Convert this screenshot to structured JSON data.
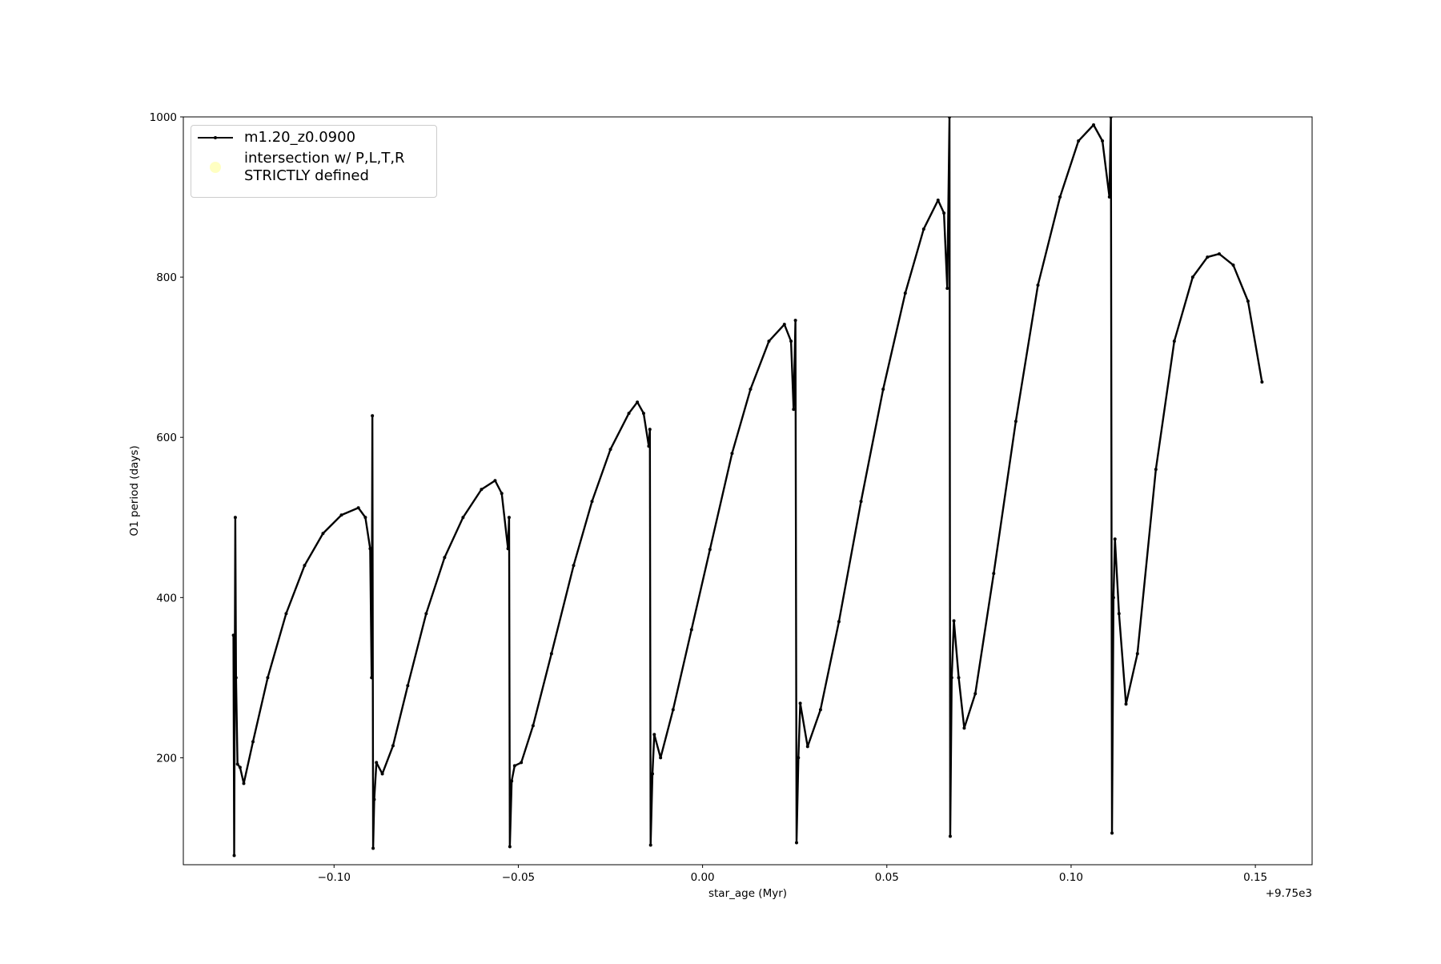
{
  "chart_data": {
    "type": "line",
    "xlabel": "star_age (Myr)",
    "ylabel": "O1 period (days)",
    "x_offset_label": "+9.75e3",
    "xlim": [
      -0.1409,
      0.1654
    ],
    "ylim": [
      66.5,
      1000
    ],
    "xticks": [
      {
        "value": -0.1,
        "label": "−0.10"
      },
      {
        "value": -0.05,
        "label": "−0.05"
      },
      {
        "value": 0,
        "label": "0.00"
      },
      {
        "value": 0.05,
        "label": "0.05"
      },
      {
        "value": 0.1,
        "label": "0.10"
      },
      {
        "value": 0.15,
        "label": "0.15"
      }
    ],
    "yticks": [
      200,
      400,
      600,
      800,
      1000
    ],
    "legend_loc": "upper left",
    "series": [
      {
        "name": "m1.20_z0.0900",
        "color": "#000000",
        "x": [
          -0.1273,
          -0.1271,
          -0.1268,
          -0.1266,
          -0.1262,
          -0.1255,
          -0.1245,
          -0.122,
          -0.118,
          -0.113,
          -0.108,
          -0.103,
          -0.098,
          -0.0934,
          -0.0915,
          -0.0902,
          -0.0898,
          -0.0896,
          -0.0894,
          -0.0891,
          -0.0885,
          -0.0869,
          -0.084,
          -0.08,
          -0.075,
          -0.07,
          -0.065,
          -0.06,
          -0.0563,
          -0.0545,
          -0.0528,
          -0.0525,
          -0.0523,
          -0.0518,
          -0.051,
          -0.0492,
          -0.046,
          -0.041,
          -0.035,
          -0.03,
          -0.025,
          -0.02,
          -0.0177,
          -0.016,
          -0.0146,
          -0.0143,
          -0.0141,
          -0.0136,
          -0.0131,
          -0.0114,
          -0.008,
          -0.003,
          0.002,
          0.008,
          0.013,
          0.018,
          0.0222,
          0.024,
          0.0247,
          0.0252,
          0.0255,
          0.026,
          0.0265,
          0.0285,
          0.032,
          0.037,
          0.043,
          0.049,
          0.055,
          0.06,
          0.0639,
          0.0655,
          0.0664,
          0.067,
          0.0672,
          0.0676,
          0.0682,
          0.0695,
          0.071,
          0.074,
          0.079,
          0.085,
          0.091,
          0.097,
          0.102,
          0.1061,
          0.1085,
          0.1104,
          0.1108,
          0.1111,
          0.1115,
          0.1119,
          0.113,
          0.1149,
          0.118,
          0.123,
          0.128,
          0.133,
          0.137,
          0.1402,
          0.144,
          0.148,
          0.1518
        ],
        "values": [
          353,
          78,
          500,
          300,
          192,
          188,
          168,
          220,
          300,
          380,
          440,
          480,
          503,
          512,
          500,
          461,
          300,
          627,
          87,
          148,
          194,
          180,
          215,
          290,
          380,
          450,
          500,
          535,
          546,
          530,
          461,
          500,
          89,
          171,
          190,
          194,
          240,
          330,
          440,
          520,
          585,
          630,
          644,
          630,
          589,
          610,
          91,
          180,
          229,
          200,
          260,
          360,
          460,
          580,
          660,
          720,
          741,
          720,
          635,
          746,
          94,
          200,
          268,
          214,
          260,
          370,
          520,
          660,
          780,
          860,
          896,
          880,
          786,
          1000,
          102,
          300,
          371,
          300,
          237,
          280,
          430,
          620,
          790,
          900,
          970,
          990,
          970,
          900,
          1000,
          106,
          400,
          473,
          380,
          267,
          330,
          560,
          720,
          800,
          825,
          829,
          815,
          770,
          669
        ]
      },
      {
        "name": "intersection w/ P,L,T,R\nSTRICTLY defined",
        "color": "#ffffb3",
        "x": [],
        "values": []
      }
    ]
  }
}
